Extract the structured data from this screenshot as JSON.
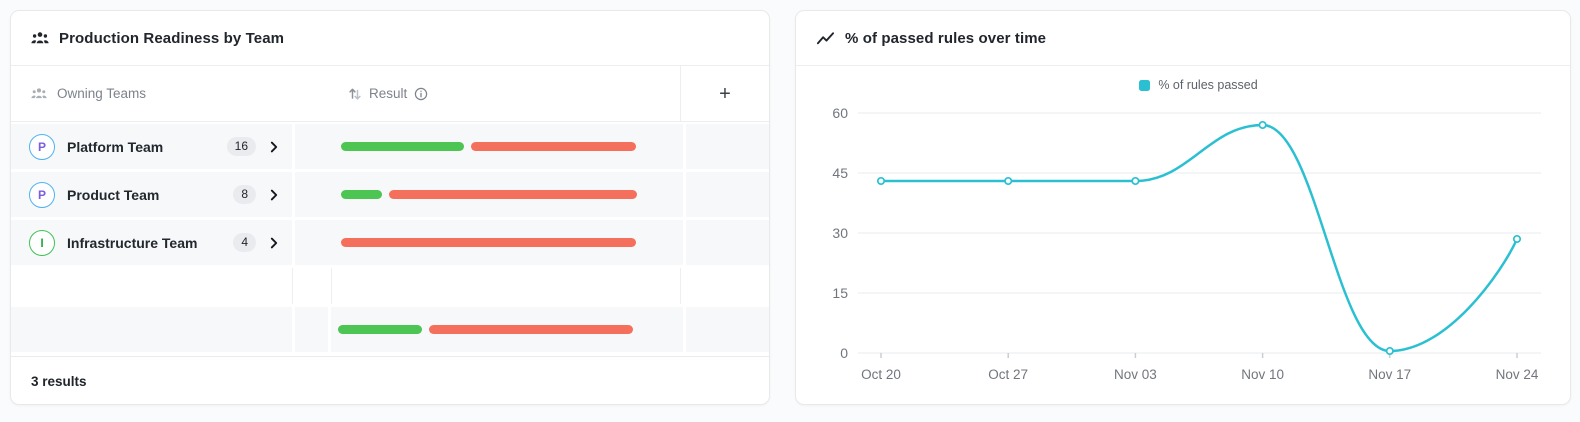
{
  "left_card": {
    "title": "Production Readiness by Team",
    "columns": {
      "teams": "Owning Teams",
      "result": "Result",
      "add": "+"
    },
    "rows": [
      {
        "initial": "P",
        "name": "Platform Team",
        "count": "16",
        "accent": "#4FB2F4",
        "letter_color": "#7C5CE0",
        "passed_pct": 41.7,
        "failed_pct": 55.9
      },
      {
        "initial": "P",
        "name": "Product Team",
        "count": "8",
        "accent": "#4FB2F4",
        "letter_color": "#7C5CE0",
        "passed_pct": 14.0,
        "failed_pct": 84.0
      },
      {
        "initial": "I",
        "name": "Infrastructure Team",
        "count": "4",
        "accent": "#41C256",
        "letter_color": "#2FA845",
        "passed_pct": 0,
        "failed_pct": 100
      }
    ],
    "summary": {
      "passed_pct": 28.5,
      "failed_pct": 69.0
    },
    "footer": "3 results",
    "colors": {
      "passed": "#4CC553",
      "failed": "#F5705C"
    }
  },
  "right_card": {
    "title": "% of passed rules over time"
  },
  "chart_data": {
    "type": "line",
    "title": "% of passed rules over time",
    "x": [
      "Oct 20",
      "Oct 27",
      "Nov 03",
      "Nov 10",
      "Nov 17",
      "Nov 24"
    ],
    "series": [
      {
        "name": "% of rules passed",
        "values": [
          43,
          43,
          43,
          57,
          0.5,
          28.5
        ],
        "color": "#2BC0D1"
      }
    ],
    "yticks": [
      0,
      15,
      30,
      45,
      60
    ],
    "ylim": [
      0,
      60
    ],
    "grid": true,
    "legend_position": "top-center",
    "xlabel": "",
    "ylabel": ""
  }
}
